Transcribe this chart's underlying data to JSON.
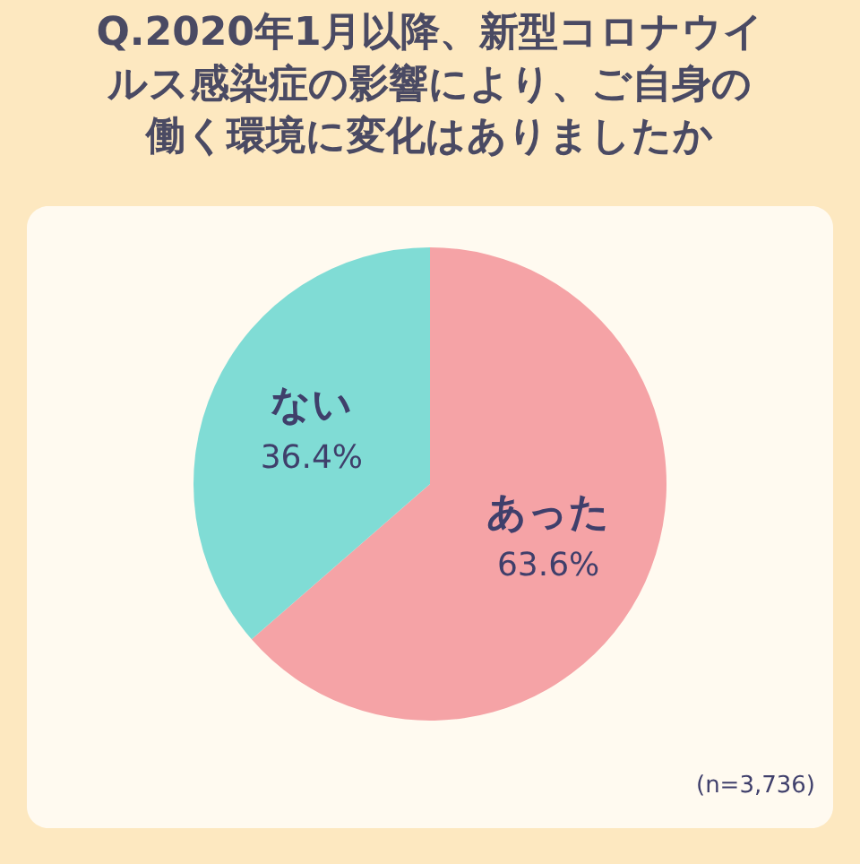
{
  "chart_data": {
    "type": "pie",
    "title": "Q.2020年1月以降、新型コロナウイルス感染症の影響により、ご自身の働く環境に変化はありましたか",
    "categories": [
      "あった",
      "ない"
    ],
    "values": [
      63.6,
      36.4
    ],
    "colors": [
      "#f5a3a6",
      "#80dcd5"
    ],
    "value_labels": [
      "63.6%",
      "36.4%"
    ],
    "annotations": [
      "(n=3,736)"
    ]
  }
}
